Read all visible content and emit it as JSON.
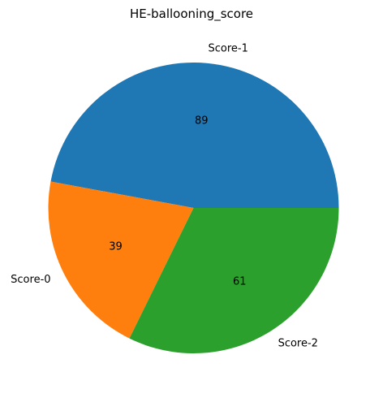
{
  "chart_data": {
    "type": "pie",
    "title": "HE-ballooning_score",
    "categories": [
      "Score-1",
      "Score-0",
      "Score-2"
    ],
    "values": [
      89,
      39,
      61
    ],
    "colors": [
      "#1f77b4",
      "#ff7f0e",
      "#2ca02c"
    ],
    "start_angle_deg": 0,
    "direction": "counterclockwise",
    "value_labels": [
      "89",
      "39",
      "61"
    ]
  }
}
